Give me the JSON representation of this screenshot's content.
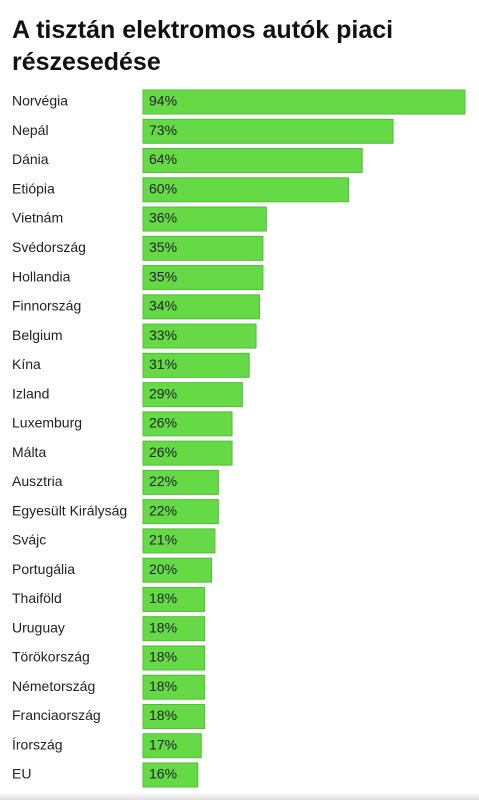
{
  "chart_data": {
    "type": "bar",
    "orientation": "horizontal",
    "title": "A tisztán elektromos autók piaci részesedése",
    "categories": [
      "Norvégia",
      "Nepál",
      "Dánia",
      "Etiópia",
      "Vietnám",
      "Svédország",
      "Hollandia",
      "Finnország",
      "Belgium",
      "Kína",
      "Izland",
      "Luxemburg",
      "Málta",
      "Ausztria",
      "Egyesült Királyság",
      "Svájc",
      "Portugália",
      "Thaiföld",
      "Uruguay",
      "Törökország",
      "Németország",
      "Franciaország",
      "Írország",
      "EU"
    ],
    "values": [
      94,
      73,
      64,
      60,
      36,
      35,
      35,
      34,
      33,
      31,
      29,
      26,
      26,
      22,
      22,
      21,
      20,
      18,
      18,
      18,
      18,
      18,
      17,
      16
    ],
    "value_labels": [
      "94%",
      "73%",
      "64%",
      "60%",
      "36%",
      "35%",
      "35%",
      "34%",
      "33%",
      "31%",
      "29%",
      "26%",
      "26%",
      "22%",
      "22%",
      "21%",
      "20%",
      "18%",
      "18%",
      "18%",
      "18%",
      "18%",
      "17%",
      "16%"
    ],
    "color": "#66d947"
  }
}
